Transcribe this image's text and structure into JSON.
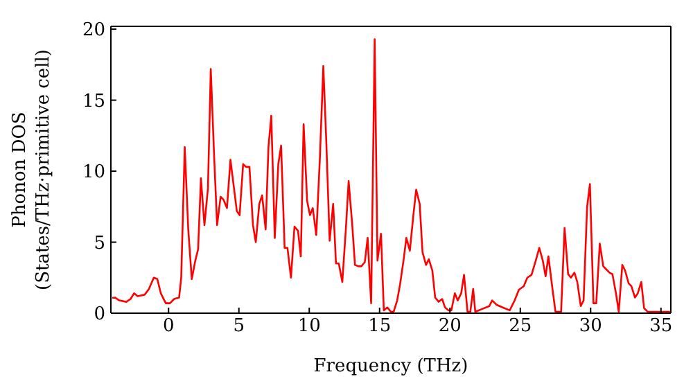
{
  "chart_data": {
    "type": "line",
    "xlabel": "Frequency (THz)",
    "ylabel": "Phonon DOS\n(States/THz·primitive cell)",
    "x": [
      -4.0,
      -3.8,
      -3.5,
      -3.0,
      -2.7,
      -2.45,
      -2.2,
      -1.7,
      -1.4,
      -1.05,
      -0.8,
      -0.55,
      -0.2,
      0.1,
      0.4,
      0.75,
      0.9,
      1.15,
      1.4,
      1.65,
      1.9,
      2.1,
      2.3,
      2.55,
      2.8,
      3.0,
      3.25,
      3.45,
      3.7,
      3.9,
      4.15,
      4.4,
      4.6,
      4.85,
      5.05,
      5.3,
      5.5,
      5.75,
      6.0,
      6.2,
      6.45,
      6.65,
      6.9,
      7.1,
      7.3,
      7.55,
      7.8,
      8.0,
      8.25,
      8.45,
      8.7,
      8.95,
      9.2,
      9.4,
      9.6,
      9.85,
      10.05,
      10.25,
      10.5,
      10.75,
      11.0,
      11.2,
      11.45,
      11.7,
      11.9,
      12.1,
      12.35,
      12.6,
      12.8,
      13.05,
      13.25,
      13.5,
      13.7,
      13.95,
      14.15,
      14.4,
      14.65,
      14.85,
      15.1,
      15.3,
      15.55,
      15.8,
      16.0,
      16.25,
      16.45,
      16.7,
      16.9,
      17.15,
      17.4,
      17.6,
      17.85,
      18.05,
      18.3,
      18.5,
      18.75,
      18.95,
      19.2,
      19.45,
      19.65,
      19.9,
      20.1,
      20.35,
      20.55,
      20.8,
      21.0,
      21.25,
      21.45,
      21.65,
      21.8,
      22.3,
      22.8,
      23.0,
      23.3,
      23.75,
      24.25,
      24.6,
      24.9,
      25.25,
      25.5,
      25.8,
      26.1,
      26.35,
      26.6,
      26.8,
      27.0,
      27.25,
      27.5,
      27.9,
      28.15,
      28.4,
      28.6,
      28.85,
      29.05,
      29.3,
      29.5,
      29.75,
      29.95,
      30.2,
      30.4,
      30.65,
      30.9,
      31.1,
      31.35,
      31.55,
      31.8,
      32.0,
      32.25,
      32.45,
      32.7,
      32.9,
      33.15,
      33.35,
      33.6,
      33.8,
      34.05,
      34.5,
      35.0,
      35.7
    ],
    "series": [
      {
        "color": "#ff0000",
        "values": [
          1.07,
          1.1,
          0.9,
          0.8,
          1.0,
          1.4,
          1.2,
          1.3,
          1.7,
          2.5,
          2.4,
          1.4,
          0.7,
          0.7,
          1.0,
          1.1,
          2.5,
          11.7,
          5.9,
          2.4,
          3.7,
          4.5,
          9.5,
          6.2,
          8.8,
          17.2,
          10.8,
          6.2,
          8.2,
          8.0,
          7.4,
          10.8,
          9.2,
          7.2,
          6.9,
          10.5,
          10.3,
          10.3,
          6.2,
          5.0,
          7.7,
          8.3,
          5.9,
          11.7,
          13.9,
          5.3,
          10.5,
          11.8,
          4.6,
          4.6,
          2.5,
          6.1,
          5.8,
          4.0,
          13.3,
          7.9,
          6.9,
          7.4,
          5.5,
          10.8,
          17.4,
          12.4,
          5.1,
          7.7,
          3.5,
          3.5,
          2.2,
          5.9,
          9.3,
          6.3,
          3.4,
          3.3,
          3.3,
          3.6,
          5.3,
          0.7,
          19.3,
          3.7,
          5.6,
          0.2,
          0.4,
          0.1,
          0.1,
          0.9,
          2.0,
          3.7,
          5.3,
          4.4,
          6.9,
          8.7,
          7.7,
          4.3,
          3.4,
          3.8,
          3.0,
          1.1,
          0.8,
          1.0,
          0.4,
          0.2,
          0.2,
          1.4,
          0.9,
          1.4,
          2.7,
          0.1,
          0.1,
          1.7,
          0.1,
          0.3,
          0.5,
          0.9,
          0.6,
          0.4,
          0.2,
          0.9,
          1.65,
          1.9,
          2.5,
          2.7,
          3.7,
          4.6,
          3.7,
          2.6,
          4.0,
          2.0,
          0.1,
          0.1,
          6.0,
          2.75,
          2.5,
          2.85,
          2.2,
          0.5,
          0.9,
          7.5,
          9.1,
          0.7,
          0.7,
          4.9,
          3.3,
          3.1,
          2.85,
          2.75,
          1.4,
          0.1,
          3.4,
          3.0,
          2.1,
          1.9,
          1.1,
          1.4,
          2.2,
          0.35,
          0.1,
          0.1,
          0.1,
          0.1
        ]
      }
    ],
    "xlim": [
      -4.1,
      35.7
    ],
    "xticks": [
      0,
      5,
      10,
      15,
      20,
      25,
      30,
      35
    ],
    "ylim": [
      0,
      20.2
    ],
    "yticks": [
      0,
      5,
      10,
      15,
      20
    ],
    "grid": false,
    "legend": false,
    "marker": "none",
    "line_style": "solid"
  }
}
